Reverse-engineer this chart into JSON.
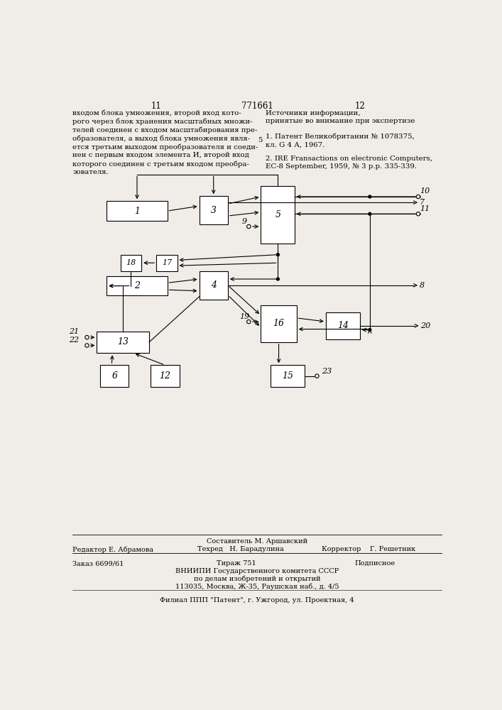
{
  "page_number_left": "11",
  "page_number_center": "771661",
  "page_number_right": "12",
  "left_text_lines": [
    "входом блока умножения, второй вход кото-",
    "рого через блок хранения масштабных множи-",
    "телей соединен с входом масштабирования пре-",
    "образователя, а выход блока умножения явля-",
    "ется третьим выходом преобразователя и соеди-",
    "нен с первым входом элемента И, второй вход",
    "которого соединен с третьим входом преобра-",
    "зователя."
  ],
  "right_hdr1": "Источники информации,",
  "right_hdr2": "принятые во внимание при экспертизе",
  "ref_num": "5",
  "ref1_line1": "1. Патент Великобритании № 1078375,",
  "ref1_line2": "кл. G 4 А, 1967.",
  "ref2_line1": "2. IRE Fransactions on electronic Computers,",
  "ref2_line2": "ЕС-8 September, 1959, № 3 р.р. 335-339.",
  "footer_sestavitel": "Составитель М. Аршавский",
  "footer_editor": "Редактор Е. Абрамова",
  "footer_tehred": "Техред   Н. Барадулина",
  "footer_korrektor": "Корректор    Г. Решетник",
  "footer_zakaz": "Заказ 6699/61",
  "footer_tirazh": "Тираж 751",
  "footer_podpisnoe": "Подписное",
  "footer_vniiipi": "ВНИИПИ Государственного комитета СССР",
  "footer_po_delam": "по делам изобретений и открытий",
  "footer_address": "113035, Москва, Ж-35, Раушская наб., д. 4/5",
  "footer_filial": "Филиал ППП \"Патент\", г. Ужгород, ул. Проектная, 4",
  "bg_color": "#f0ede8"
}
